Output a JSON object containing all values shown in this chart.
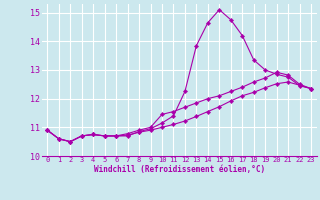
{
  "background_color": "#cce8ee",
  "grid_color": "#ffffff",
  "line_color": "#aa00aa",
  "xlabel": "Windchill (Refroidissement éolien,°C)",
  "xlim": [
    -0.5,
    23.5
  ],
  "ylim": [
    10,
    15.3
  ],
  "yticks": [
    10,
    11,
    12,
    13,
    14,
    15
  ],
  "xticks": [
    0,
    1,
    2,
    3,
    4,
    5,
    6,
    7,
    8,
    9,
    10,
    11,
    12,
    13,
    14,
    15,
    16,
    17,
    18,
    19,
    20,
    21,
    22,
    23
  ],
  "series1_x": [
    0,
    1,
    2,
    3,
    4,
    5,
    6,
    7,
    8,
    9,
    10,
    11,
    12,
    13,
    14,
    15,
    16,
    17,
    18,
    19,
    20,
    21,
    22,
    23
  ],
  "series1_y": [
    10.9,
    10.6,
    10.5,
    10.7,
    10.75,
    10.7,
    10.7,
    10.7,
    10.85,
    10.95,
    11.15,
    11.4,
    12.25,
    13.85,
    14.65,
    15.1,
    14.75,
    14.2,
    13.35,
    13.0,
    12.85,
    12.75,
    12.45,
    12.35
  ],
  "series2_x": [
    0,
    1,
    2,
    3,
    4,
    5,
    6,
    7,
    8,
    9,
    10,
    11,
    12,
    13,
    14,
    15,
    16,
    17,
    18,
    19,
    20,
    21,
    22,
    23
  ],
  "series2_y": [
    10.9,
    10.6,
    10.5,
    10.7,
    10.75,
    10.7,
    10.7,
    10.78,
    10.9,
    11.0,
    11.45,
    11.55,
    11.7,
    11.85,
    12.0,
    12.1,
    12.25,
    12.4,
    12.58,
    12.72,
    12.92,
    12.82,
    12.5,
    12.35
  ],
  "series3_x": [
    0,
    1,
    2,
    3,
    4,
    5,
    6,
    7,
    8,
    9,
    10,
    11,
    12,
    13,
    14,
    15,
    16,
    17,
    18,
    19,
    20,
    21,
    22,
    23
  ],
  "series3_y": [
    10.9,
    10.6,
    10.5,
    10.7,
    10.75,
    10.7,
    10.7,
    10.73,
    10.83,
    10.9,
    11.0,
    11.1,
    11.22,
    11.38,
    11.55,
    11.72,
    11.92,
    12.1,
    12.22,
    12.38,
    12.52,
    12.58,
    12.47,
    12.35
  ],
  "marker_size": 2.2,
  "line_width": 0.8,
  "tick_fontsize": 5.0,
  "xlabel_fontsize": 5.5,
  "ytick_fontsize": 6.0
}
